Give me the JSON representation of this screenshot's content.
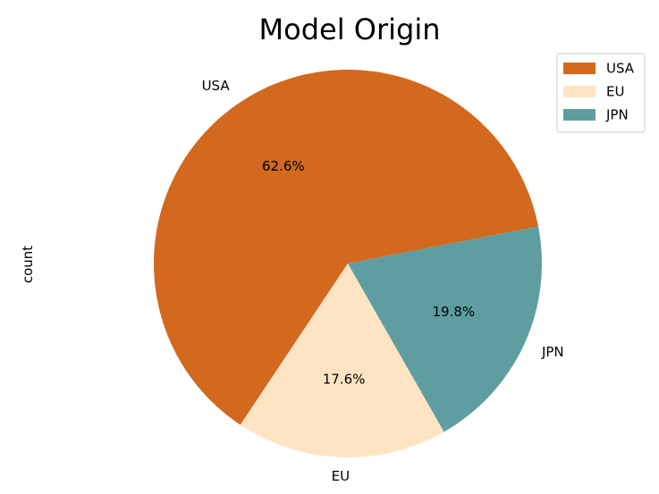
{
  "chart_data": {
    "type": "pie",
    "title": "Model Origin",
    "ylabel": "count",
    "legend_position": "upper-right",
    "autopct_format": "1 decimal percent",
    "slices": [
      {
        "label": "USA",
        "value": 62.6,
        "percent_label": "62.6%",
        "color": "#D2691E"
      },
      {
        "label": "EU",
        "value": 17.6,
        "percent_label": "17.6%",
        "color": "#FFE4C4"
      },
      {
        "label": "JPN",
        "value": 19.8,
        "percent_label": "19.8%",
        "color": "#5F9EA0"
      }
    ],
    "legend": [
      "USA",
      "EU",
      "JPN"
    ]
  }
}
